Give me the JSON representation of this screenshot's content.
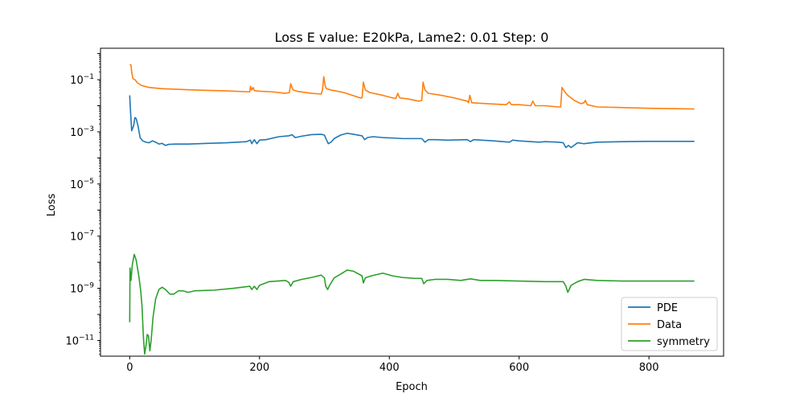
{
  "chart_data": {
    "type": "line",
    "title": "Loss E value: E20kPa, Lame2: 0.01 Step: 0",
    "xlabel": "Epoch",
    "ylabel": "Loss",
    "yscale": "log",
    "xlim": [
      -45,
      915
    ],
    "ylim": [
      2.5e-12,
      1.6
    ],
    "xticks": [
      0,
      200,
      400,
      600,
      800
    ],
    "yticks": [
      {
        "value": 0.1,
        "base": "10",
        "exp": "−1"
      },
      {
        "value": 0.001,
        "base": "10",
        "exp": "−3"
      },
      {
        "value": 1e-05,
        "base": "10",
        "exp": "−5"
      },
      {
        "value": 1e-07,
        "base": "10",
        "exp": "−7"
      },
      {
        "value": 1e-09,
        "base": "10",
        "exp": "−9"
      },
      {
        "value": 1e-11,
        "base": "10",
        "exp": "−11"
      }
    ],
    "grid": false,
    "legend_position": "lower-right",
    "series": [
      {
        "name": "PDE",
        "color": "#1f77b4",
        "points": [
          [
            0,
            0.025
          ],
          [
            1,
            0.008
          ],
          [
            3,
            0.0011
          ],
          [
            6,
            0.0017
          ],
          [
            8,
            0.0035
          ],
          [
            10,
            0.0032
          ],
          [
            13,
            0.0016
          ],
          [
            16,
            0.0006
          ],
          [
            20,
            0.00045
          ],
          [
            25,
            0.0004
          ],
          [
            30,
            0.00038
          ],
          [
            35,
            0.00045
          ],
          [
            40,
            0.0004
          ],
          [
            45,
            0.00034
          ],
          [
            50,
            0.00036
          ],
          [
            55,
            0.0003
          ],
          [
            60,
            0.00033
          ],
          [
            70,
            0.00034
          ],
          [
            90,
            0.00034
          ],
          [
            120,
            0.00036
          ],
          [
            150,
            0.00038
          ],
          [
            180,
            0.00042
          ],
          [
            186,
            0.00048
          ],
          [
            188,
            0.00035
          ],
          [
            192,
            0.0005
          ],
          [
            196,
            0.00035
          ],
          [
            200,
            0.00048
          ],
          [
            210,
            0.0005
          ],
          [
            230,
            0.00065
          ],
          [
            245,
            0.0007
          ],
          [
            250,
            0.00078
          ],
          [
            255,
            0.0006
          ],
          [
            265,
            0.00068
          ],
          [
            280,
            0.00078
          ],
          [
            295,
            0.0008
          ],
          [
            300,
            0.00075
          ],
          [
            303,
            0.0005
          ],
          [
            306,
            0.00035
          ],
          [
            310,
            0.0004
          ],
          [
            315,
            0.00055
          ],
          [
            325,
            0.00075
          ],
          [
            335,
            0.00088
          ],
          [
            345,
            0.0008
          ],
          [
            358,
            0.0007
          ],
          [
            362,
            0.0005
          ],
          [
            366,
            0.0006
          ],
          [
            375,
            0.00065
          ],
          [
            390,
            0.0006
          ],
          [
            405,
            0.00058
          ],
          [
            420,
            0.00055
          ],
          [
            440,
            0.00055
          ],
          [
            450,
            0.00055
          ],
          [
            455,
            0.0004
          ],
          [
            460,
            0.0005
          ],
          [
            470,
            0.0005
          ],
          [
            490,
            0.00048
          ],
          [
            520,
            0.0005
          ],
          [
            525,
            0.00042
          ],
          [
            530,
            0.0005
          ],
          [
            560,
            0.00045
          ],
          [
            585,
            0.0004
          ],
          [
            590,
            0.00048
          ],
          [
            600,
            0.00045
          ],
          [
            630,
            0.0004
          ],
          [
            640,
            0.00042
          ],
          [
            660,
            0.0004
          ],
          [
            668,
            0.00038
          ],
          [
            672,
            0.00025
          ],
          [
            676,
            0.0003
          ],
          [
            680,
            0.00025
          ],
          [
            690,
            0.00038
          ],
          [
            700,
            0.00035
          ],
          [
            720,
            0.0004
          ],
          [
            760,
            0.00042
          ],
          [
            800,
            0.00043
          ],
          [
            870,
            0.00043
          ]
        ]
      },
      {
        "name": "Data",
        "color": "#ff7f0e",
        "points": [
          [
            0,
            0.38
          ],
          [
            2,
            0.36
          ],
          [
            3,
            0.2
          ],
          [
            5,
            0.11
          ],
          [
            8,
            0.1
          ],
          [
            12,
            0.075
          ],
          [
            18,
            0.06
          ],
          [
            30,
            0.05
          ],
          [
            50,
            0.045
          ],
          [
            100,
            0.04
          ],
          [
            150,
            0.037
          ],
          [
            185,
            0.034
          ],
          [
            186,
            0.055
          ],
          [
            188,
            0.04
          ],
          [
            190,
            0.05
          ],
          [
            192,
            0.038
          ],
          [
            200,
            0.036
          ],
          [
            220,
            0.034
          ],
          [
            240,
            0.03
          ],
          [
            246,
            0.032
          ],
          [
            248,
            0.07
          ],
          [
            250,
            0.05
          ],
          [
            252,
            0.04
          ],
          [
            260,
            0.035
          ],
          [
            280,
            0.03
          ],
          [
            295,
            0.028
          ],
          [
            297,
            0.04
          ],
          [
            299,
            0.13
          ],
          [
            301,
            0.06
          ],
          [
            303,
            0.045
          ],
          [
            310,
            0.04
          ],
          [
            330,
            0.032
          ],
          [
            355,
            0.02
          ],
          [
            358,
            0.02
          ],
          [
            360,
            0.08
          ],
          [
            363,
            0.04
          ],
          [
            370,
            0.032
          ],
          [
            390,
            0.025
          ],
          [
            405,
            0.02
          ],
          [
            410,
            0.019
          ],
          [
            413,
            0.03
          ],
          [
            416,
            0.02
          ],
          [
            430,
            0.018
          ],
          [
            445,
            0.015
          ],
          [
            450,
            0.016
          ],
          [
            452,
            0.08
          ],
          [
            455,
            0.04
          ],
          [
            460,
            0.03
          ],
          [
            480,
            0.025
          ],
          [
            500,
            0.02
          ],
          [
            520,
            0.015
          ],
          [
            522,
            0.013
          ],
          [
            524,
            0.025
          ],
          [
            527,
            0.013
          ],
          [
            550,
            0.012
          ],
          [
            580,
            0.011
          ],
          [
            585,
            0.014
          ],
          [
            588,
            0.011
          ],
          [
            600,
            0.011
          ],
          [
            618,
            0.01
          ],
          [
            621,
            0.015
          ],
          [
            625,
            0.01
          ],
          [
            640,
            0.01
          ],
          [
            660,
            0.009
          ],
          [
            664,
            0.009
          ],
          [
            666,
            0.05
          ],
          [
            670,
            0.035
          ],
          [
            675,
            0.025
          ],
          [
            685,
            0.016
          ],
          [
            695,
            0.012
          ],
          [
            700,
            0.013
          ],
          [
            702,
            0.016
          ],
          [
            705,
            0.011
          ],
          [
            720,
            0.009
          ],
          [
            760,
            0.0085
          ],
          [
            800,
            0.008
          ],
          [
            840,
            0.0077
          ],
          [
            870,
            0.0075
          ]
        ]
      },
      {
        "name": "symmetry",
        "color": "#2ca02c",
        "points": [
          [
            0,
            5e-11
          ],
          [
            0.5,
            6e-09
          ],
          [
            1,
            4e-09
          ],
          [
            2,
            2e-09
          ],
          [
            4,
            8e-09
          ],
          [
            7,
            2e-08
          ],
          [
            10,
            1.2e-08
          ],
          [
            14,
            3e-09
          ],
          [
            17,
            8e-10
          ],
          [
            19,
            2e-10
          ],
          [
            21,
            1.5e-11
          ],
          [
            23,
            3e-12
          ],
          [
            25,
            6e-12
          ],
          [
            27,
            1.7e-11
          ],
          [
            29,
            1.5e-11
          ],
          [
            31,
            4e-12
          ],
          [
            33,
            1e-11
          ],
          [
            36,
            8e-11
          ],
          [
            40,
            4e-10
          ],
          [
            45,
            9e-10
          ],
          [
            50,
            1.1e-09
          ],
          [
            55,
            9e-10
          ],
          [
            62,
            6e-10
          ],
          [
            68,
            6e-10
          ],
          [
            75,
            8e-10
          ],
          [
            82,
            8e-10
          ],
          [
            90,
            7e-10
          ],
          [
            100,
            8e-10
          ],
          [
            130,
            8.5e-10
          ],
          [
            160,
            1e-09
          ],
          [
            185,
            1.2e-09
          ],
          [
            188,
            9e-10
          ],
          [
            192,
            1.2e-09
          ],
          [
            196,
            9e-10
          ],
          [
            200,
            1.3e-09
          ],
          [
            215,
            1.8e-09
          ],
          [
            240,
            2e-09
          ],
          [
            245,
            1.7e-09
          ],
          [
            248,
            1.2e-09
          ],
          [
            252,
            1.8e-09
          ],
          [
            265,
            2.2e-09
          ],
          [
            280,
            2.6e-09
          ],
          [
            295,
            3.2e-09
          ],
          [
            300,
            2.5e-09
          ],
          [
            302,
            1.2e-09
          ],
          [
            305,
            9e-10
          ],
          [
            308,
            1.3e-09
          ],
          [
            315,
            2.5e-09
          ],
          [
            325,
            3.5e-09
          ],
          [
            335,
            5e-09
          ],
          [
            345,
            4.5e-09
          ],
          [
            358,
            3e-09
          ],
          [
            360,
            1.6e-09
          ],
          [
            363,
            2.5e-09
          ],
          [
            372,
            3e-09
          ],
          [
            390,
            3.8e-09
          ],
          [
            405,
            3e-09
          ],
          [
            420,
            2.6e-09
          ],
          [
            440,
            2.4e-09
          ],
          [
            450,
            2.4e-09
          ],
          [
            453,
            1.5e-09
          ],
          [
            458,
            2e-09
          ],
          [
            470,
            2.2e-09
          ],
          [
            490,
            2.2e-09
          ],
          [
            510,
            2e-09
          ],
          [
            525,
            2.3e-09
          ],
          [
            540,
            2e-09
          ],
          [
            560,
            2e-09
          ],
          [
            600,
            1.9e-09
          ],
          [
            640,
            1.8e-09
          ],
          [
            668,
            1.8e-09
          ],
          [
            672,
            1.2e-09
          ],
          [
            675,
            7e-10
          ],
          [
            680,
            1.3e-09
          ],
          [
            690,
            1.8e-09
          ],
          [
            700,
            2.2e-09
          ],
          [
            720,
            2e-09
          ],
          [
            760,
            1.9e-09
          ],
          [
            800,
            1.9e-09
          ],
          [
            870,
            1.9e-09
          ]
        ]
      }
    ]
  }
}
